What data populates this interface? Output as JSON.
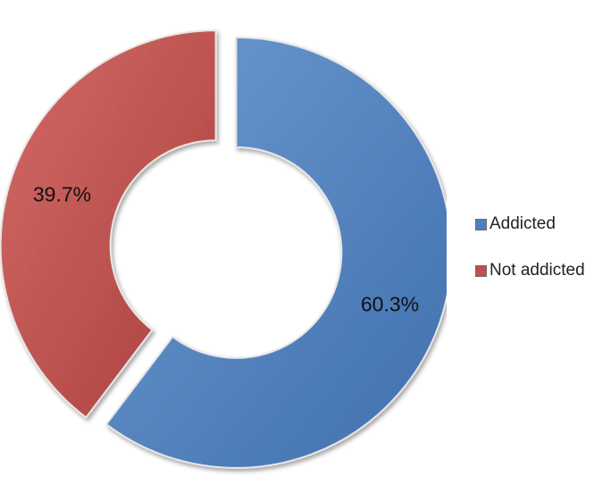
{
  "chart_data": {
    "type": "pie",
    "subtype": "donut",
    "title": "",
    "categories": [
      "Addicted",
      "Not addicted"
    ],
    "values": [
      60.3,
      39.7
    ],
    "data_labels": [
      "60.3%",
      "39.7%"
    ],
    "colors": [
      "#4F81BD",
      "#C0504D"
    ],
    "legend": "right",
    "exploded": true
  }
}
